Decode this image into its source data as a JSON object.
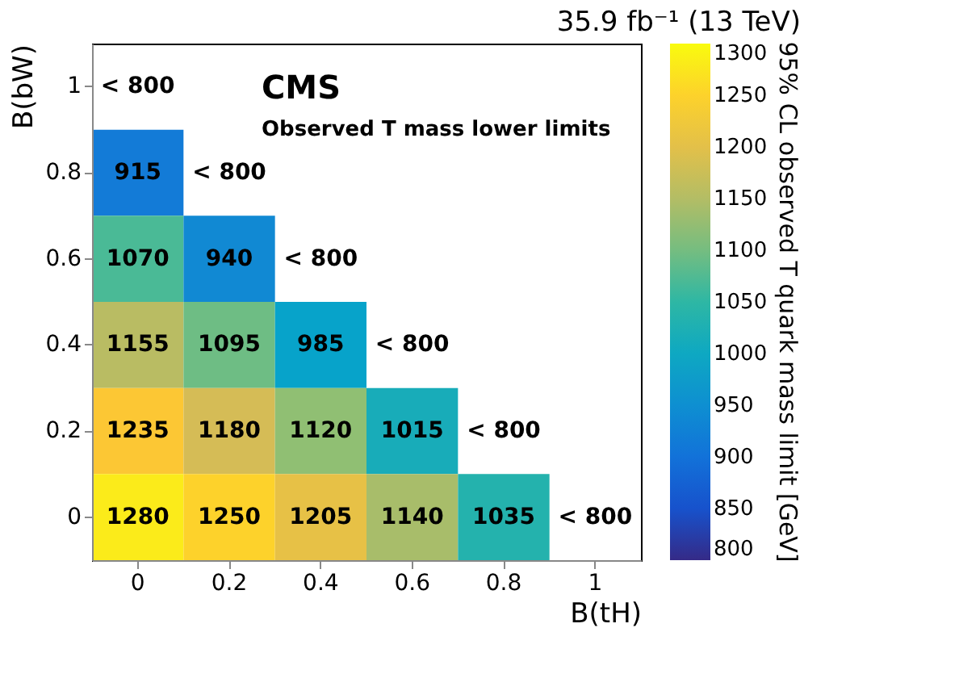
{
  "chart_data": {
    "type": "heatmap",
    "title": "35.9 fb⁻¹ (13 TeV)",
    "xlabel": "B(tH)",
    "ylabel": "B(bW)",
    "clabel": "95% CL observed T quark mass limit [GeV]",
    "annotations": [
      "CMS",
      "Observed T mass lower limits"
    ],
    "categories": [
      "0",
      "0.2",
      "0.4",
      "0.6",
      "0.8",
      "1"
    ],
    "y_categories": [
      "1",
      "0.8",
      "0.6",
      "0.4",
      "0.2",
      "0"
    ],
    "cells": [
      [
        null,
        null,
        null,
        null,
        null,
        null
      ],
      [
        915,
        null,
        null,
        null,
        null,
        null
      ],
      [
        1070,
        940,
        null,
        null,
        null,
        null
      ],
      [
        1155,
        1095,
        985,
        null,
        null,
        null
      ],
      [
        1235,
        1180,
        1120,
        1015,
        null,
        null
      ],
      [
        1280,
        1250,
        1205,
        1140,
        1035,
        null
      ]
    ],
    "cell_labels": [
      [
        "< 800",
        null,
        null,
        null,
        null,
        null
      ],
      [
        "915",
        "< 800",
        null,
        null,
        null,
        null
      ],
      [
        "1070",
        "940",
        "< 800",
        null,
        null,
        null
      ],
      [
        "1155",
        "1095",
        "985",
        "< 800",
        null,
        null
      ],
      [
        "1235",
        "1180",
        "1120",
        "1015",
        "< 800",
        null
      ],
      [
        "1280",
        "1250",
        "1205",
        "1140",
        "1035",
        "< 800"
      ]
    ],
    "clim": [
      800,
      1300
    ],
    "cticks": [
      800,
      850,
      900,
      950,
      1000,
      1050,
      1100,
      1150,
      1200,
      1250,
      1300
    ],
    "grid": false
  }
}
